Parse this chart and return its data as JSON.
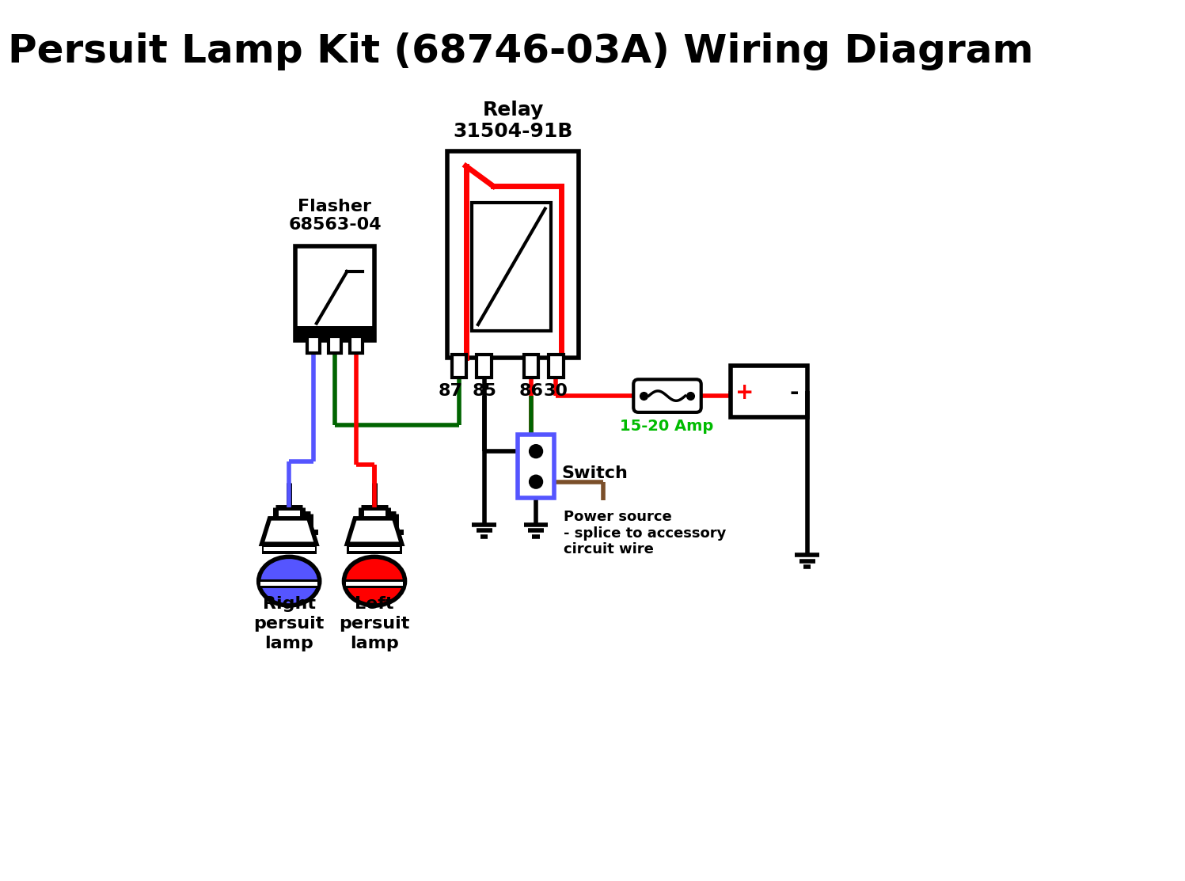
{
  "title": "Persuit Lamp Kit (68746-03A) Wiring Diagram",
  "title_fontsize": 36,
  "bg_color": "#ffffff",
  "black": "#000000",
  "red": "#ff0000",
  "blue": "#5555ff",
  "dark_green": "#006400",
  "lime_green": "#00bb00",
  "brown": "#7B4F2A",
  "relay_label": "Relay\n31504-91B",
  "flasher_label": "Flasher\n68563-04",
  "pin_labels": [
    "87",
    "85",
    "86",
    "30"
  ],
  "switch_label": "Switch",
  "fuse_label": "15-20 Amp",
  "power_source_label": "Power source\n- splice to accessory\ncircuit wire",
  "right_lamp_label": "Right\npersuit\nlamp",
  "left_lamp_label": "Left\npersuit\nlamp"
}
